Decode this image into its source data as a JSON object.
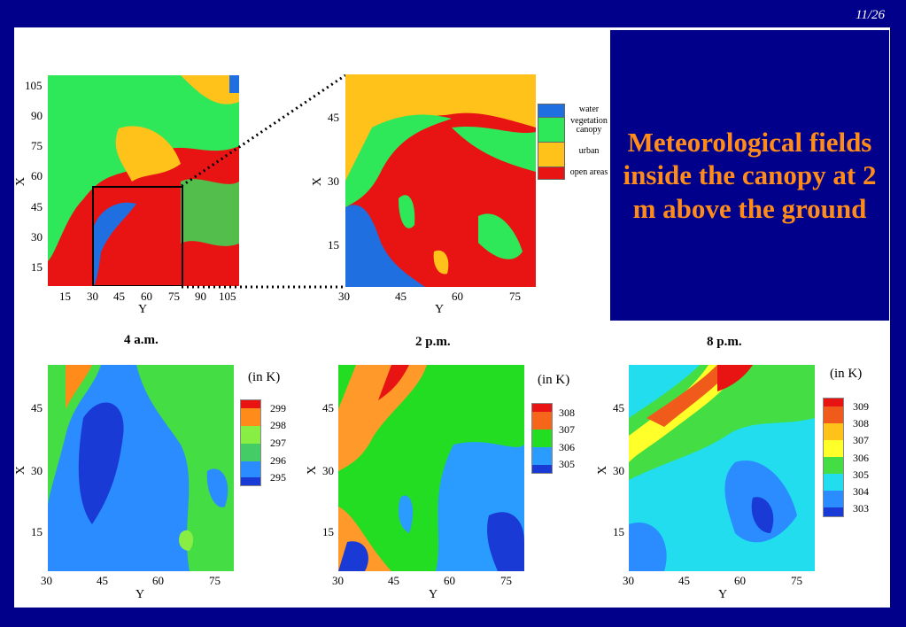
{
  "slide_number": "11/26",
  "title": "Meteorological fields inside the canopy at 2 m above the ground",
  "landuse_map": {
    "x_ticks": [
      "105",
      "90",
      "75",
      "60",
      "45",
      "30",
      "15"
    ],
    "y_ticks": [
      "15",
      "30",
      "45",
      "60",
      "75",
      "90",
      "105"
    ],
    "xlabel": "X",
    "ylabel": "Y"
  },
  "zoom_map": {
    "x_ticks": [
      "45",
      "30",
      "15"
    ],
    "y_ticks": [
      "30",
      "45",
      "60",
      "75"
    ],
    "xlabel": "X",
    "ylabel": "Y"
  },
  "landuse_legend": [
    {
      "label": "water",
      "color": "#1f6fe0"
    },
    {
      "label": "vegetation canopy",
      "color": "#2ee85a"
    },
    {
      "label": "urban",
      "color": "#ffc21a"
    },
    {
      "label": "open areas",
      "color": "#e81414"
    }
  ],
  "panels": [
    {
      "time": "4 a.m.",
      "unit": "(in K)",
      "x_ticks": [
        "45",
        "30",
        "15"
      ],
      "y_ticks": [
        "30",
        "45",
        "60",
        "75"
      ],
      "xlabel": "X",
      "ylabel": "Y",
      "legend": [
        {
          "label": "299",
          "color": "#ff8c1a"
        },
        {
          "label": "298",
          "color": "#ff8c1a"
        },
        {
          "label": "297",
          "color": "#44dd44"
        },
        {
          "label": "296",
          "color": "#2a8cff"
        },
        {
          "label": "295",
          "color": "#1a3ad6"
        }
      ]
    },
    {
      "time": "2 p.m.",
      "unit": "(in K)",
      "x_ticks": [
        "45",
        "30",
        "15"
      ],
      "y_ticks": [
        "30",
        "45",
        "60",
        "75"
      ],
      "xlabel": "X",
      "ylabel": "Y",
      "legend": [
        {
          "label": "308",
          "color": "#f5661a"
        },
        {
          "label": "307",
          "color": "#ff9a2a"
        },
        {
          "label": "306",
          "color": "#22dd22"
        },
        {
          "label": "305",
          "color": "#2a9cff"
        }
      ]
    },
    {
      "time": "8 p.m.",
      "unit": "(in K)",
      "x_ticks": [
        "45",
        "30",
        "15"
      ],
      "y_ticks": [
        "30",
        "45",
        "60",
        "75"
      ],
      "xlabel": "X",
      "ylabel": "Y",
      "legend": [
        {
          "label": "309",
          "color": "#f05a1a"
        },
        {
          "label": "308",
          "color": "#ffc21a"
        },
        {
          "label": "307",
          "color": "#ffff2a"
        },
        {
          "label": "306",
          "color": "#44dd44"
        },
        {
          "label": "305",
          "color": "#22ddee"
        },
        {
          "label": "304",
          "color": "#2a8cff"
        },
        {
          "label": "303",
          "color": "#1a3ad6"
        }
      ]
    }
  ],
  "colors": {
    "background": "#00008b",
    "title": "#ff8c1a"
  }
}
